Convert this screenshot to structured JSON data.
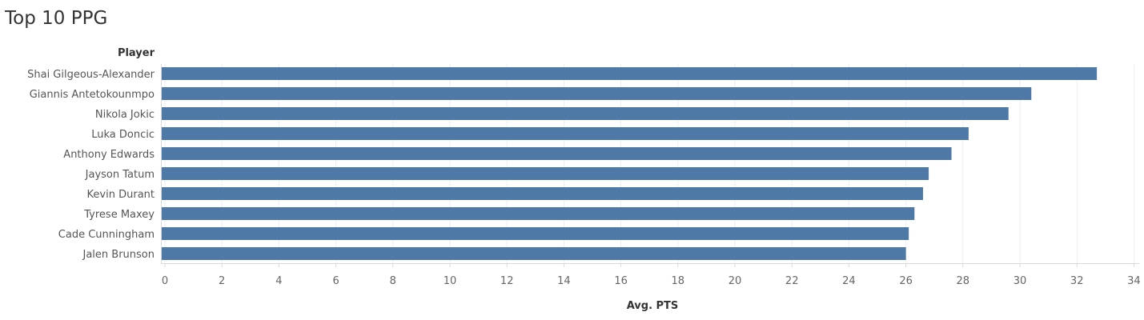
{
  "header": {
    "title": "Top 10 PPG",
    "row_header": "Player"
  },
  "colors": {
    "bar": "#4e79a7",
    "gridline": "#eeeeee",
    "axis": "#d9d9d9"
  },
  "chart_data": {
    "type": "bar",
    "orientation": "horizontal",
    "title": "Top 10 PPG",
    "xlabel": "Avg. PTS",
    "ylabel": "Player",
    "xlim": [
      0,
      34
    ],
    "xticks": [
      "0",
      "2",
      "4",
      "6",
      "8",
      "10",
      "12",
      "14",
      "16",
      "18",
      "20",
      "22",
      "24",
      "26",
      "28",
      "30",
      "32",
      "34"
    ],
    "grid": false,
    "categories": [
      "Shai Gilgeous-Alexander",
      "Giannis Antetokounmpo",
      "Nikola Jokic",
      "Luka Doncic",
      "Anthony Edwards",
      "Jayson Tatum",
      "Kevin Durant",
      "Tyrese Maxey",
      "Cade Cunningham",
      "Jalen Brunson"
    ],
    "values": [
      32.7,
      30.4,
      29.6,
      28.2,
      27.6,
      26.8,
      26.6,
      26.3,
      26.1,
      26.0
    ]
  }
}
